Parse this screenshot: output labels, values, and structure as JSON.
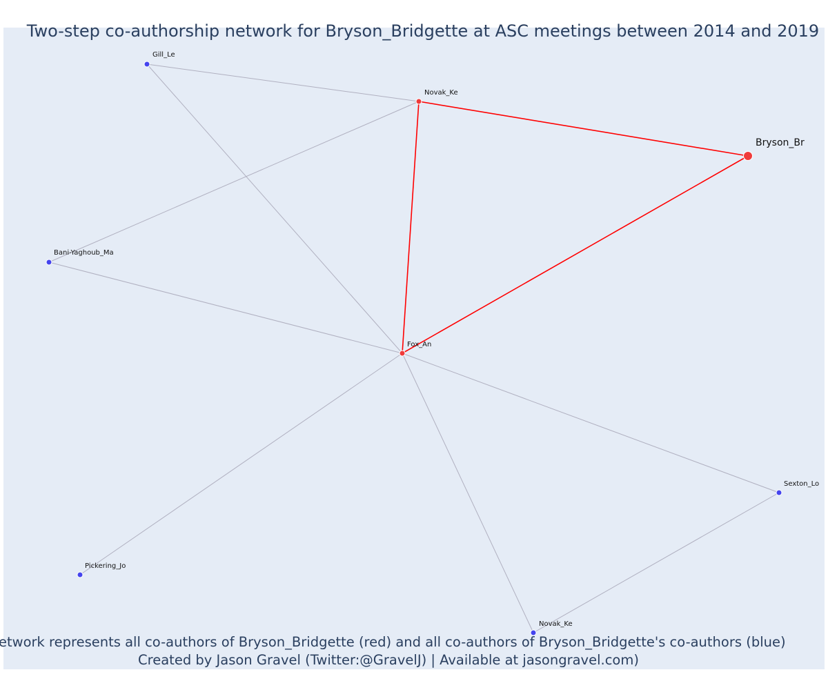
{
  "title": "Two-step co-authorship network for Bryson_Bridgette at ASC meetings between 2014 and 2019",
  "caption": {
    "line1": "Network represents all co-authors of Bryson_Bridgette (red) and all co-authors of Bryson_Bridgette's co-authors (blue)",
    "line2": "Created by Jason Gravel (Twitter:@GravelJ) | Available at jasongravel.com)"
  },
  "colors": {
    "background": "#e5ecf6",
    "red": "#ff0000",
    "blue": "#3333ff",
    "edge_grey": "#b0b0c0",
    "node_red": "#ef3b3b",
    "node_blue": "#4444ee"
  },
  "network": {
    "nodes": [
      {
        "id": "bryson",
        "label": "Bryson_Br",
        "group": "focal"
      },
      {
        "id": "novak1",
        "label": "Novak_Ke",
        "group": "red"
      },
      {
        "id": "fox",
        "label": "Fox_An",
        "group": "red"
      },
      {
        "id": "gill",
        "label": "Gill_Le",
        "group": "blue"
      },
      {
        "id": "bani",
        "label": "Bani-Yaghoub_Ma",
        "group": "blue"
      },
      {
        "id": "sexton",
        "label": "Sexton_Lo",
        "group": "blue"
      },
      {
        "id": "pickering",
        "label": "Pickering_Jo",
        "group": "blue"
      },
      {
        "id": "novak2",
        "label": "Novak_Ke",
        "group": "blue"
      }
    ],
    "edges": [
      {
        "source": "gill",
        "target": "novak1",
        "type": "grey"
      },
      {
        "source": "gill",
        "target": "fox",
        "type": "grey"
      },
      {
        "source": "bani",
        "target": "novak1",
        "type": "grey"
      },
      {
        "source": "bani",
        "target": "fox",
        "type": "grey"
      },
      {
        "source": "fox",
        "target": "sexton",
        "type": "grey"
      },
      {
        "source": "fox",
        "target": "pickering",
        "type": "grey"
      },
      {
        "source": "fox",
        "target": "novak2",
        "type": "grey"
      },
      {
        "source": "sexton",
        "target": "novak2",
        "type": "grey"
      },
      {
        "source": "novak1",
        "target": "bryson",
        "type": "red"
      },
      {
        "source": "novak1",
        "target": "fox",
        "type": "red"
      },
      {
        "source": "fox",
        "target": "bryson",
        "type": "red"
      }
    ]
  }
}
